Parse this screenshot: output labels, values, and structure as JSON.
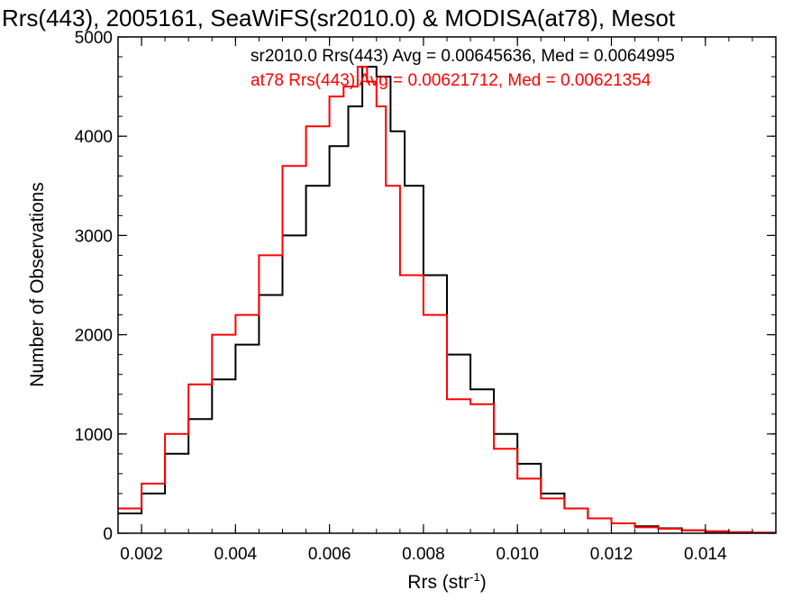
{
  "chart_data": {
    "type": "line",
    "title": "Rrs(443), 2005161, SeaWiFS(sr2010.0) & MODISA(at78), Mesot",
    "xlabel": "Rrs (str",
    "xlabel_sup": "-1",
    "xlabel_close": ")",
    "ylabel": "Number of Observations",
    "xlim": [
      0.0015,
      0.0155
    ],
    "ylim": [
      0,
      5000
    ],
    "x_ticks": [
      0.002,
      0.004,
      0.006,
      0.008,
      0.01,
      0.012,
      0.014
    ],
    "x_tick_labels": [
      "0.002",
      "0.004",
      "0.006",
      "0.008",
      "0.010",
      "0.012",
      "0.014"
    ],
    "y_ticks": [
      0,
      1000,
      2000,
      3000,
      4000,
      5000
    ],
    "y_tick_labels": [
      "0",
      "1000",
      "2000",
      "3000",
      "4000",
      "5000"
    ],
    "grid": false,
    "legend_position": "top-right",
    "colors": {
      "series_1": "#000000",
      "series_2": "#ff0000"
    },
    "series": [
      {
        "name": "sr2010.0 Rrs(443) Avg = 0.00645636, Med = 0.0064995",
        "color": "#000000",
        "x": [
          0.0015,
          0.002,
          0.0025,
          0.003,
          0.0035,
          0.004,
          0.0045,
          0.005,
          0.0055,
          0.006,
          0.0064,
          0.0067,
          0.007,
          0.0073,
          0.0076,
          0.008,
          0.0085,
          0.009,
          0.0095,
          0.01,
          0.0105,
          0.011,
          0.0115,
          0.012,
          0.0125,
          0.013,
          0.0135,
          0.014,
          0.0145,
          0.015,
          0.0155
        ],
        "y": [
          200,
          400,
          800,
          1150,
          1550,
          1900,
          2400,
          3000,
          3500,
          3900,
          4300,
          4700,
          4600,
          4050,
          3500,
          2600,
          1800,
          1450,
          1000,
          700,
          400,
          250,
          150,
          100,
          70,
          50,
          30,
          15,
          10,
          5,
          0
        ]
      },
      {
        "name": "at78 Rrs(443) Avg = 0.00621712, Med = 0.00621354",
        "color": "#ff0000",
        "x": [
          0.0015,
          0.002,
          0.0025,
          0.003,
          0.0035,
          0.004,
          0.0045,
          0.005,
          0.0055,
          0.006,
          0.0063,
          0.0066,
          0.0068,
          0.007,
          0.0072,
          0.0075,
          0.008,
          0.0085,
          0.009,
          0.0095,
          0.01,
          0.0105,
          0.011,
          0.0115,
          0.012,
          0.0125,
          0.013,
          0.0135,
          0.014,
          0.0145,
          0.015,
          0.0155
        ],
        "y": [
          250,
          500,
          1000,
          1500,
          2000,
          2200,
          2800,
          3700,
          4100,
          4400,
          4500,
          4700,
          4550,
          4300,
          3500,
          2600,
          2200,
          1350,
          1300,
          850,
          550,
          350,
          250,
          150,
          100,
          60,
          45,
          30,
          20,
          10,
          5,
          0
        ]
      }
    ]
  }
}
